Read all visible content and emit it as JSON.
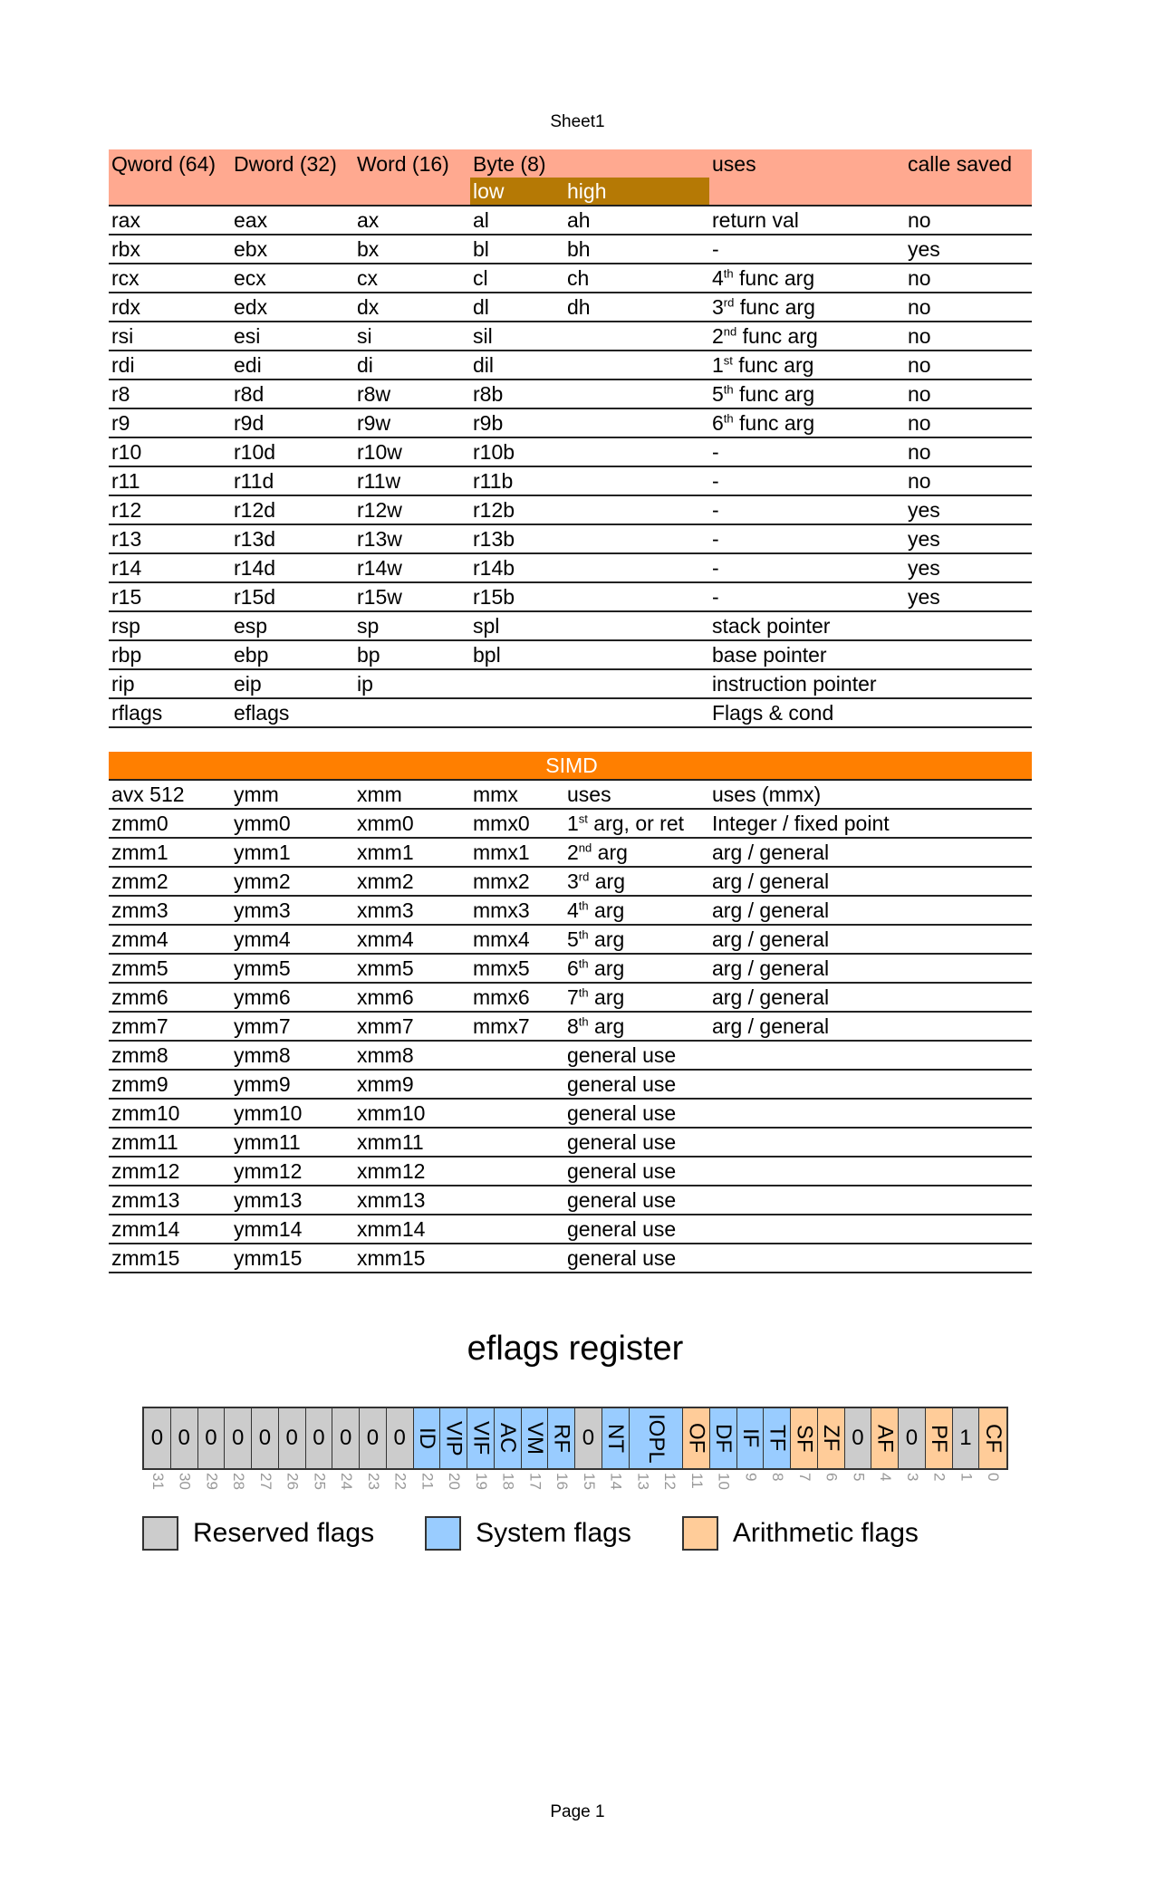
{
  "sheet_title": "Sheet1",
  "page_label": "Page 1",
  "gpr": {
    "headers": [
      "Qword (64)",
      "Dword (32)",
      "Word (16)",
      "Byte (8)",
      "",
      "uses",
      "calle saved"
    ],
    "subheaders": [
      "low",
      "high"
    ],
    "rows": [
      [
        "rax",
        "eax",
        "ax",
        "al",
        "ah",
        "return val",
        "",
        "no"
      ],
      [
        "rbx",
        "ebx",
        "bx",
        "bl",
        "bh",
        " -",
        "",
        "yes"
      ],
      [
        "rcx",
        "ecx",
        "cx",
        "cl",
        "ch",
        "4",
        "th",
        "no"
      ],
      [
        "rdx",
        "edx",
        "dx",
        "dl",
        "dh",
        "3",
        "rd",
        "no"
      ],
      [
        "rsi",
        "esi",
        "si",
        "sil",
        "",
        "2",
        "nd",
        "no"
      ],
      [
        "rdi",
        "edi",
        "di",
        "dil",
        "",
        "1",
        "st",
        "no"
      ],
      [
        "r8",
        "r8d",
        "r8w",
        "r8b",
        "",
        "5",
        "th",
        "no"
      ],
      [
        "r9",
        "r9d",
        "r9w",
        "r9b",
        "",
        "6",
        "th",
        "no"
      ],
      [
        "r10",
        "r10d",
        "r10w",
        "r10b",
        "",
        " -",
        "",
        "no"
      ],
      [
        "r11",
        "r11d",
        "r11w",
        "r11b",
        "",
        " -",
        "",
        "no"
      ],
      [
        "r12",
        "r12d",
        "r12w",
        "r12b",
        "",
        " -",
        "",
        "yes"
      ],
      [
        "r13",
        "r13d",
        "r13w",
        "r13b",
        "",
        " -",
        "",
        "yes"
      ],
      [
        "r14",
        "r14d",
        "r14w",
        "r14b",
        "",
        " -",
        "",
        "yes"
      ],
      [
        "r15",
        "r15d",
        "r15w",
        "r15b",
        "",
        " -",
        "",
        "yes"
      ],
      [
        "rsp",
        "esp",
        "sp",
        "spl",
        "",
        "stack pointer",
        "",
        ""
      ],
      [
        "rbp",
        "ebp",
        "bp",
        "bpl",
        "",
        "base pointer",
        "",
        ""
      ],
      [
        "rip",
        "eip",
        "ip",
        "",
        "",
        "instruction pointer",
        "",
        ""
      ],
      [
        "rflags",
        "eflags",
        "",
        "",
        "",
        "Flags & cond",
        "",
        ""
      ]
    ],
    "func_arg_suffix": " func arg"
  },
  "simd": {
    "title": "SIMD",
    "headers": [
      "avx 512",
      "ymm",
      "xmm",
      "mmx",
      "uses",
      "uses (mmx)"
    ],
    "rows": [
      [
        "zmm0",
        "ymm0",
        "xmm0",
        "mmx0",
        "1",
        "st",
        " arg, or ret",
        "Integer / fixed point"
      ],
      [
        "zmm1",
        "ymm1",
        "xmm1",
        "mmx1",
        "2",
        "nd",
        " arg",
        "arg / general"
      ],
      [
        "zmm2",
        "ymm2",
        "xmm2",
        "mmx2",
        "3",
        "rd",
        " arg",
        "arg / general"
      ],
      [
        "zmm3",
        "ymm3",
        "xmm3",
        "mmx3",
        "4",
        "th",
        " arg",
        "arg / general"
      ],
      [
        "zmm4",
        "ymm4",
        "xmm4",
        "mmx4",
        "5",
        "th",
        " arg",
        "arg / general"
      ],
      [
        "zmm5",
        "ymm5",
        "xmm5",
        "mmx5",
        "6",
        "th",
        " arg",
        "arg / general"
      ],
      [
        "zmm6",
        "ymm6",
        "xmm6",
        "mmx6",
        "7",
        "th",
        " arg",
        "arg / general"
      ],
      [
        "zmm7",
        "ymm7",
        "xmm7",
        "mmx7",
        "8",
        "th",
        " arg",
        "arg / general"
      ],
      [
        "zmm8",
        "ymm8",
        "xmm8",
        "",
        "general use",
        "",
        "",
        ""
      ],
      [
        "zmm9",
        "ymm9",
        "xmm9",
        "",
        "general use",
        "",
        "",
        ""
      ],
      [
        "zmm10",
        "ymm10",
        "xmm10",
        "",
        "general use",
        "",
        "",
        ""
      ],
      [
        "zmm11",
        "ymm11",
        "xmm11",
        "",
        "general use",
        "",
        "",
        ""
      ],
      [
        "zmm12",
        "ymm12",
        "xmm12",
        "",
        "general use",
        "",
        "",
        ""
      ],
      [
        "zmm13",
        "ymm13",
        "xmm13",
        "",
        "general use",
        "",
        "",
        ""
      ],
      [
        "zmm14",
        "ymm14",
        "xmm14",
        "",
        "general use",
        "",
        "",
        ""
      ],
      [
        "zmm15",
        "ymm15",
        "xmm15",
        "",
        "general use",
        "",
        "",
        ""
      ]
    ]
  },
  "eflags": {
    "title": "eflags register",
    "colors": {
      "reserved": "#cccccc",
      "system": "#99ccff",
      "arithmetic": "#ffcc99"
    },
    "cells": [
      {
        "t": "0",
        "k": "reserved",
        "w": 1
      },
      {
        "t": "0",
        "k": "reserved",
        "w": 1
      },
      {
        "t": "0",
        "k": "reserved",
        "w": 1
      },
      {
        "t": "0",
        "k": "reserved",
        "w": 1
      },
      {
        "t": "0",
        "k": "reserved",
        "w": 1
      },
      {
        "t": "0",
        "k": "reserved",
        "w": 1
      },
      {
        "t": "0",
        "k": "reserved",
        "w": 1
      },
      {
        "t": "0",
        "k": "reserved",
        "w": 1
      },
      {
        "t": "0",
        "k": "reserved",
        "w": 1
      },
      {
        "t": "0",
        "k": "reserved",
        "w": 1
      },
      {
        "t": "ID",
        "k": "system",
        "w": 1
      },
      {
        "t": "VIP",
        "k": "system",
        "w": 1
      },
      {
        "t": "VIF",
        "k": "system",
        "w": 1
      },
      {
        "t": "AC",
        "k": "system",
        "w": 1
      },
      {
        "t": "VM",
        "k": "system",
        "w": 1
      },
      {
        "t": "RF",
        "k": "system",
        "w": 1
      },
      {
        "t": "0",
        "k": "reserved",
        "w": 1
      },
      {
        "t": "NT",
        "k": "system",
        "w": 1
      },
      {
        "t": "IOPL",
        "k": "system",
        "w": 2
      },
      {
        "t": "OF",
        "k": "arithmetic",
        "w": 1
      },
      {
        "t": "DF",
        "k": "system",
        "w": 1
      },
      {
        "t": "IF",
        "k": "system",
        "w": 1
      },
      {
        "t": "TF",
        "k": "system",
        "w": 1
      },
      {
        "t": "SF",
        "k": "arithmetic",
        "w": 1
      },
      {
        "t": "ZF",
        "k": "arithmetic",
        "w": 1
      },
      {
        "t": "0",
        "k": "reserved",
        "w": 1
      },
      {
        "t": "AF",
        "k": "arithmetic",
        "w": 1
      },
      {
        "t": "0",
        "k": "reserved",
        "w": 1
      },
      {
        "t": "PF",
        "k": "arithmetic",
        "w": 1
      },
      {
        "t": "1",
        "k": "reserved",
        "w": 1
      },
      {
        "t": "CF",
        "k": "arithmetic",
        "w": 1
      }
    ],
    "bit_numbers": [
      "31",
      "30",
      "29",
      "28",
      "27",
      "26",
      "25",
      "24",
      "23",
      "22",
      "21",
      "20",
      "19",
      "18",
      "17",
      "16",
      "15",
      "14",
      "13",
      "12",
      "11",
      "10",
      "9",
      "8",
      "7",
      "6",
      "5",
      "4",
      "3",
      "2",
      "1",
      "0"
    ],
    "legend": [
      {
        "label": "Reserved flags",
        "k": "reserved"
      },
      {
        "label": "System flags",
        "k": "system"
      },
      {
        "label": "Arithmetic flags",
        "k": "arithmetic"
      }
    ]
  }
}
